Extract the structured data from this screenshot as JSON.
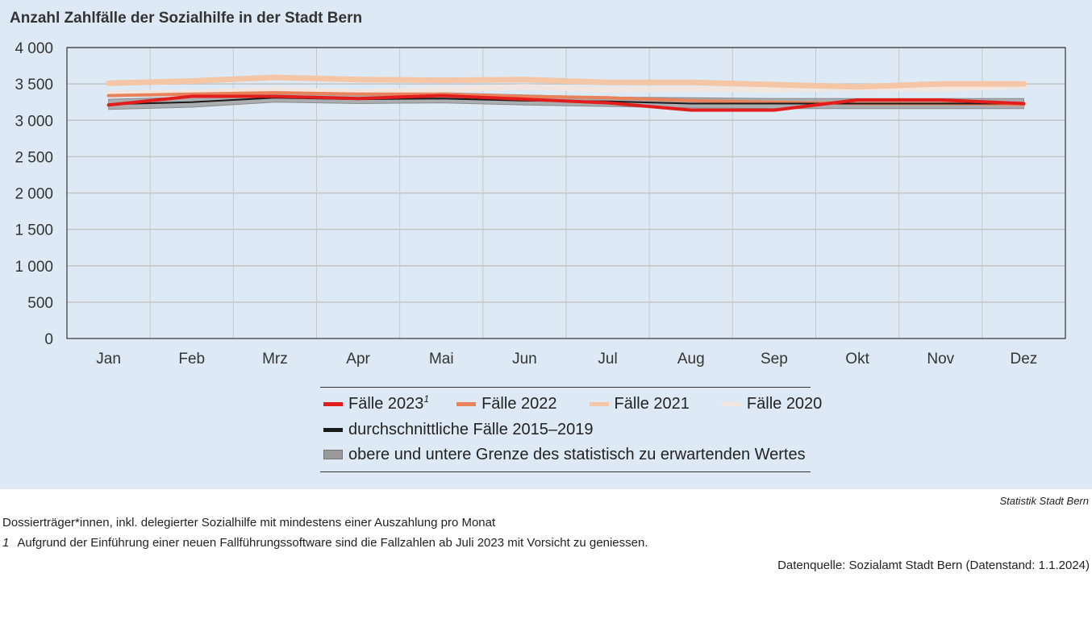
{
  "header": {
    "title": "Anzahl Zahlfälle der Sozialhilfe in der Stadt Bern"
  },
  "chart_data": {
    "type": "line",
    "title": "Anzahl Zahlfälle der Sozialhilfe in der Stadt Bern",
    "xlabel": "",
    "ylabel": "",
    "ylim": [
      0,
      4000
    ],
    "yticks": [
      0,
      500,
      1000,
      1500,
      2000,
      2500,
      3000,
      3500,
      4000
    ],
    "ytick_labels": [
      "0",
      "500",
      "1 000",
      "1 500",
      "2 000",
      "2 500",
      "3 000",
      "3 500",
      "4 000"
    ],
    "grid": true,
    "legend_position": "bottom",
    "categories": [
      "Jan",
      "Feb",
      "Mrz",
      "Apr",
      "Mai",
      "Jun",
      "Jul",
      "Aug",
      "Sep",
      "Okt",
      "Nov",
      "Dez"
    ],
    "band": {
      "name": "obere und untere Grenze des statistisch zu erwartenden Wertes",
      "color": "#9a9a9a",
      "upper": [
        3290,
        3320,
        3390,
        3370,
        3380,
        3350,
        3320,
        3310,
        3300,
        3300,
        3300,
        3300
      ],
      "lower": [
        3150,
        3180,
        3250,
        3230,
        3240,
        3210,
        3190,
        3170,
        3160,
        3160,
        3160,
        3160
      ]
    },
    "series": [
      {
        "name": "Fälle 2020",
        "color": "#f2e6e0",
        "width": 7,
        "values": [
          3370,
          3380,
          3420,
          3390,
          3420,
          3460,
          3420,
          3430,
          3420,
          3450,
          3430,
          3470
        ]
      },
      {
        "name": "Fälle 2021",
        "color": "#f4c6a6",
        "width": 7,
        "values": [
          3510,
          3540,
          3590,
          3560,
          3550,
          3560,
          3520,
          3520,
          3490,
          3460,
          3500,
          3500
        ]
      },
      {
        "name": "Fälle 2022",
        "color": "#e8825a",
        "width": 4,
        "values": [
          3340,
          3360,
          3380,
          3360,
          3360,
          3330,
          3310,
          3270,
          3250,
          3230,
          3230,
          3220
        ]
      },
      {
        "name": "durchschnittliche Fälle 2015–2019",
        "color": "#1a1a1a",
        "width": 2,
        "values": [
          3220,
          3250,
          3310,
          3290,
          3300,
          3270,
          3260,
          3230,
          3230,
          3230,
          3230,
          3230
        ]
      },
      {
        "name": "Fälle 2023",
        "color": "#e31c1c",
        "width": 4,
        "values": [
          3210,
          3330,
          3330,
          3300,
          3340,
          3290,
          3240,
          3140,
          3140,
          3280,
          3280,
          3230
        ]
      }
    ]
  },
  "legend": {
    "items_row1": [
      {
        "label": "Fälle 2023",
        "footnote": "1",
        "color": "#e31c1c"
      },
      {
        "label": "Fälle 2022",
        "footnote": "",
        "color": "#e8825a"
      },
      {
        "label": "Fälle 2021",
        "footnote": "",
        "color": "#f4c6a6"
      },
      {
        "label": "Fälle 2020",
        "footnote": "",
        "color": "#f2e6e0"
      }
    ],
    "item_row2": {
      "label": "durchschnittliche Fälle 2015–2019",
      "color": "#1a1a1a"
    },
    "item_row3": {
      "label": "obere und untere Grenze des statistisch zu erwartenden Wertes",
      "color": "#9a9a9a"
    }
  },
  "footer": {
    "credit": "Statistik Stadt Bern",
    "note_1": "Dossierträger*innen, inkl. delegierter Sozialhilfe mit mindestens einer Auszahlung pro Monat",
    "note_2_mark": "1",
    "note_2": "Aufgrund der Einführung einer neuen Fallführungssoftware sind die Fallzahlen ab Juli 2023 mit Vorsicht zu geniessen.",
    "data_source": "Datenquelle: Sozialamt Stadt Bern (Datenstand: 1.1.2024)"
  }
}
